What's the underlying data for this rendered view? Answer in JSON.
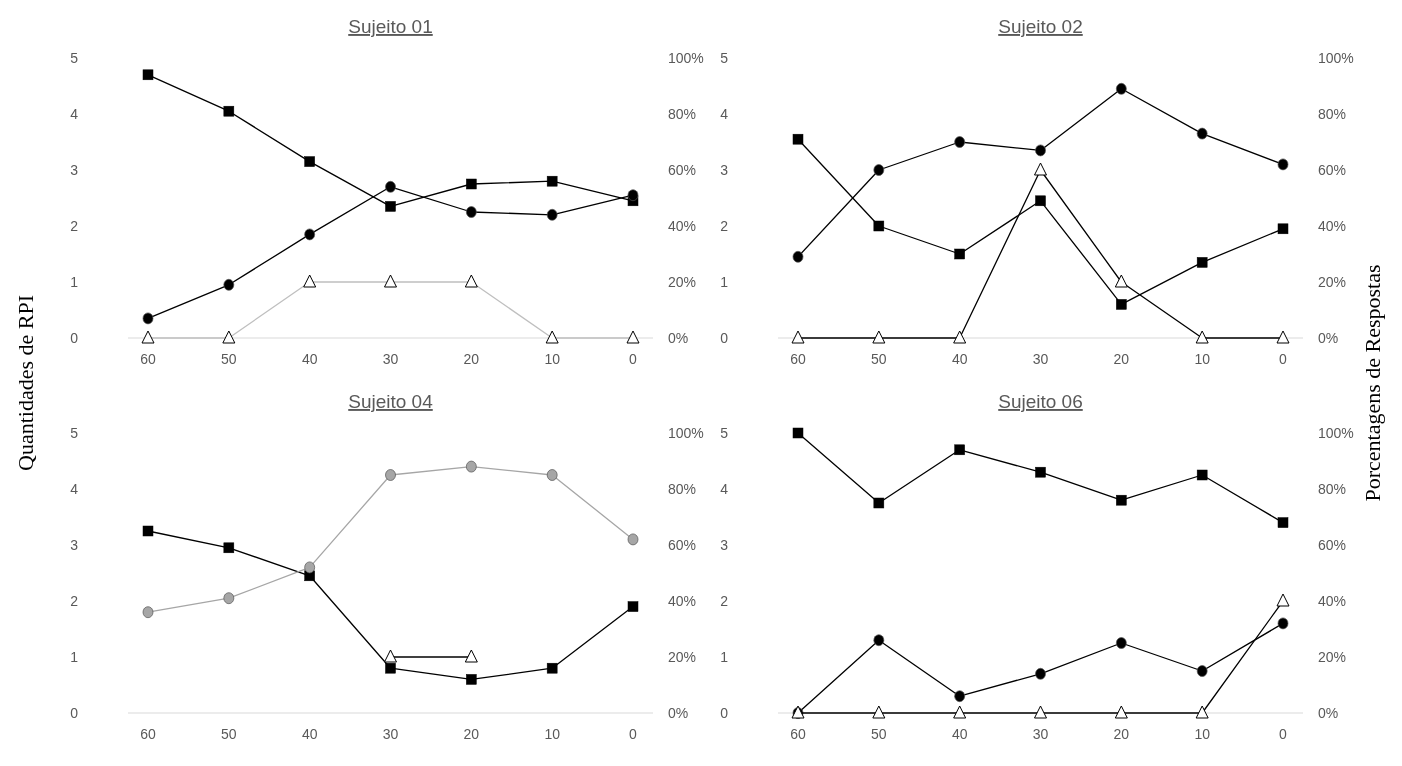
{
  "chart_data": [
    {
      "type": "line",
      "title": "Sujeito 01",
      "ylabel": "Quantidades de RPI",
      "categories": [
        "60",
        "50",
        "40",
        "30",
        "20",
        "10",
        "0"
      ],
      "ylim": [
        0,
        5
      ],
      "yticks": [
        0,
        1,
        2,
        3,
        4,
        5
      ],
      "y2lim": [
        0,
        100
      ],
      "y2ticks": [
        {
          "value": 0,
          "label": "0%"
        },
        {
          "value": 20,
          "label": "20%"
        },
        {
          "value": 40,
          "label": "40%"
        },
        {
          "value": 60,
          "label": "60%"
        },
        {
          "value": 80,
          "label": "80%"
        },
        {
          "value": 100,
          "label": "100%"
        }
      ],
      "grid": false,
      "series": [
        {
          "color": "#000000",
          "marker": "square",
          "axis": "y2",
          "values": [
            94,
            81,
            63,
            47,
            55,
            56,
            49
          ]
        },
        {
          "color": "#000000",
          "marker": "circle",
          "axis": "y2",
          "values": [
            7,
            19,
            37,
            54,
            45,
            44,
            51
          ]
        },
        {
          "color": "#bfbfbf",
          "marker": "triangle",
          "values": [
            0,
            0,
            1,
            1,
            1,
            0,
            0
          ]
        }
      ]
    },
    {
      "type": "line",
      "title": "Sujeito 02",
      "y2label": "Porcentagens de Respostas",
      "categories": [
        "60",
        "50",
        "40",
        "30",
        "20",
        "10",
        "0"
      ],
      "ylim": [
        0,
        5
      ],
      "yticks": [
        0,
        1,
        2,
        3,
        4,
        5
      ],
      "y2lim": [
        0,
        100
      ],
      "y2ticks": [
        {
          "value": 0,
          "label": "0%"
        },
        {
          "value": 20,
          "label": "20%"
        },
        {
          "value": 40,
          "label": "40%"
        },
        {
          "value": 60,
          "label": "60%"
        },
        {
          "value": 80,
          "label": "80%"
        },
        {
          "value": 100,
          "label": "100%"
        }
      ],
      "grid": false,
      "series": [
        {
          "color": "#000000",
          "marker": "square",
          "axis": "y2",
          "values": [
            71,
            40,
            30,
            49,
            12,
            27,
            39
          ]
        },
        {
          "color": "#000000",
          "marker": "circle",
          "axis": "y2",
          "values": [
            29,
            60,
            70,
            67,
            89,
            73,
            62
          ]
        },
        {
          "color": "#000000",
          "marker": "triangle",
          "values": [
            0,
            0,
            0,
            3,
            1,
            0,
            0
          ]
        }
      ]
    },
    {
      "type": "line",
      "title": "Sujeito 04",
      "categories": [
        "60",
        "50",
        "40",
        "30",
        "20",
        "10",
        "0"
      ],
      "ylim": [
        0,
        5
      ],
      "yticks": [
        0,
        1,
        2,
        3,
        4,
        5
      ],
      "y2lim": [
        0,
        100
      ],
      "y2ticks": [
        {
          "value": 0,
          "label": "0%"
        },
        {
          "value": 20,
          "label": "20%"
        },
        {
          "value": 40,
          "label": "40%"
        },
        {
          "value": 60,
          "label": "60%"
        },
        {
          "value": 80,
          "label": "80%"
        },
        {
          "value": 100,
          "label": "100%"
        }
      ],
      "grid": false,
      "series": [
        {
          "color": "#000000",
          "marker": "square",
          "axis": "y2",
          "values": [
            65,
            59,
            49,
            16,
            12,
            16,
            38
          ]
        },
        {
          "color": "#a6a6a6",
          "marker": "circle",
          "axis": "y2",
          "values": [
            36,
            41,
            52,
            85,
            88,
            85,
            62
          ]
        },
        {
          "color": "#000000",
          "marker": "triangle",
          "values": [
            null,
            null,
            null,
            1,
            1,
            null,
            null
          ]
        }
      ]
    },
    {
      "type": "line",
      "title": "Sujeito 06",
      "categories": [
        "60",
        "50",
        "40",
        "30",
        "20",
        "10",
        "0"
      ],
      "ylim": [
        0,
        5
      ],
      "yticks": [
        0,
        1,
        2,
        3,
        4,
        5
      ],
      "y2lim": [
        0,
        100
      ],
      "y2ticks": [
        {
          "value": 0,
          "label": "0%"
        },
        {
          "value": 20,
          "label": "20%"
        },
        {
          "value": 40,
          "label": "40%"
        },
        {
          "value": 60,
          "label": "60%"
        },
        {
          "value": 80,
          "label": "80%"
        },
        {
          "value": 100,
          "label": "100%"
        }
      ],
      "grid": false,
      "series": [
        {
          "color": "#000000",
          "marker": "square",
          "axis": "y2",
          "values": [
            100,
            75,
            94,
            86,
            76,
            85,
            68
          ]
        },
        {
          "color": "#000000",
          "marker": "circle",
          "axis": "y2",
          "values": [
            0,
            26,
            6,
            14,
            25,
            15,
            32
          ]
        },
        {
          "color": "#000000",
          "marker": "triangle",
          "values": [
            0,
            0,
            0,
            0,
            0,
            0,
            2
          ]
        }
      ]
    }
  ]
}
